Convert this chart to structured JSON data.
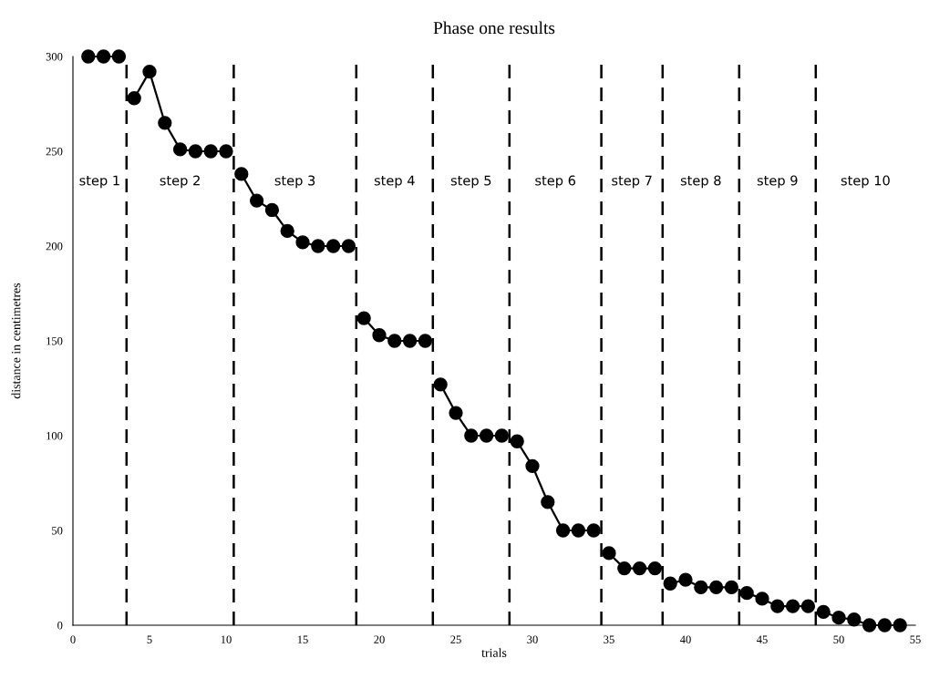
{
  "chart_data": {
    "type": "line",
    "title": "Phase one results",
    "xlabel": "trials",
    "ylabel": "distance in centimetres",
    "xlim": [
      0,
      55
    ],
    "xticks": [
      0,
      5,
      10,
      15,
      20,
      25,
      30,
      35,
      40,
      45,
      50,
      55
    ],
    "ylim": [
      0,
      300
    ],
    "yticks": [
      0,
      50,
      100,
      150,
      200,
      250,
      300
    ],
    "grid": false,
    "legend": false,
    "marker": "circle",
    "line_style": "solid",
    "series": [
      {
        "color": "#000000",
        "x": [
          1,
          2,
          3
        ],
        "values": [
          300,
          300,
          300
        ]
      },
      {
        "color": "#000000",
        "x": [
          4,
          5,
          6,
          7,
          8,
          9,
          10
        ],
        "values": [
          278,
          292,
          265,
          251,
          250,
          250,
          250
        ]
      },
      {
        "color": "#000000",
        "x": [
          11,
          12,
          13,
          14,
          15,
          16,
          17,
          18
        ],
        "values": [
          238,
          224,
          219,
          208,
          202,
          200,
          200,
          200
        ]
      },
      {
        "color": "#000000",
        "x": [
          19,
          20,
          21,
          22,
          23
        ],
        "values": [
          162,
          153,
          150,
          150,
          150
        ]
      },
      {
        "color": "#000000",
        "x": [
          24,
          25,
          26,
          27,
          28
        ],
        "values": [
          127,
          112,
          100,
          100,
          100
        ]
      },
      {
        "color": "#000000",
        "x": [
          29,
          30,
          31,
          32,
          33,
          34
        ],
        "values": [
          97,
          84,
          65,
          50,
          50,
          50
        ]
      },
      {
        "color": "#000000",
        "x": [
          35,
          36,
          37,
          38
        ],
        "values": [
          38,
          30,
          30,
          30
        ]
      },
      {
        "color": "#000000",
        "x": [
          39,
          40,
          41,
          42,
          43
        ],
        "values": [
          22,
          24,
          20,
          20,
          20
        ]
      },
      {
        "color": "#000000",
        "x": [
          44,
          45,
          46,
          47,
          48
        ],
        "values": [
          17,
          14,
          10,
          10,
          10
        ]
      },
      {
        "color": "#000000",
        "x": [
          49,
          50,
          51,
          52,
          53,
          54
        ],
        "values": [
          7,
          4,
          3,
          0,
          0,
          0
        ]
      }
    ],
    "ref_lines": [
      {
        "axis": "x",
        "value": 3.5,
        "color": "#000000",
        "line_style": "dashed"
      },
      {
        "axis": "x",
        "value": 10.5,
        "color": "#000000",
        "line_style": "dashed"
      },
      {
        "axis": "x",
        "value": 18.5,
        "color": "#000000",
        "line_style": "dashed"
      },
      {
        "axis": "x",
        "value": 23.5,
        "color": "#000000",
        "line_style": "dashed"
      },
      {
        "axis": "x",
        "value": 28.5,
        "color": "#000000",
        "line_style": "dashed"
      },
      {
        "axis": "x",
        "value": 34.5,
        "color": "#000000",
        "line_style": "dashed"
      },
      {
        "axis": "x",
        "value": 38.5,
        "color": "#000000",
        "line_style": "dashed"
      },
      {
        "axis": "x",
        "value": 43.5,
        "color": "#000000",
        "line_style": "dashed"
      },
      {
        "axis": "x",
        "value": 48.5,
        "color": "#000000",
        "line_style": "dashed"
      }
    ],
    "annotations": [
      "step 1",
      "step 2",
      "step 3",
      "step 4",
      "step 5",
      "step 6",
      "step 7",
      "step 8",
      "step 9",
      "step 10"
    ]
  }
}
